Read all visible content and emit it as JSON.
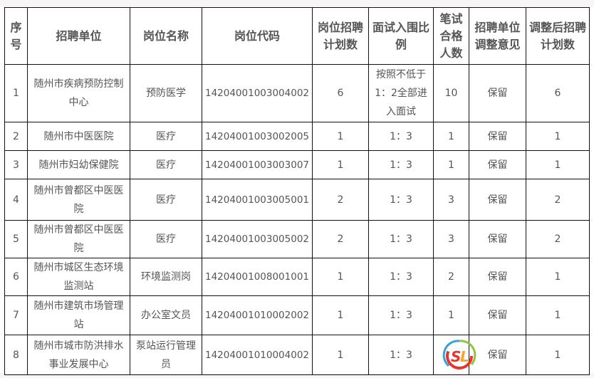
{
  "headers": [
    "序号",
    "招聘单位",
    "岗位名称",
    "岗位代码",
    "岗位招聘计划数",
    "面试入围比例",
    "笔试合格人数",
    "招聘单位调整意见",
    "调整后招聘计划数"
  ],
  "rows": [
    [
      "1",
      "随州市疾病预防控制中心",
      "预防医学",
      "14204001003004002",
      "6",
      "按照不低于1：2全部进入面试",
      "10",
      "保留",
      "6"
    ],
    [
      "2",
      "随州市中医医院",
      "医疗",
      "14204001003002005",
      "1",
      "1：3",
      "1",
      "保留",
      "1"
    ],
    [
      "3",
      "随州市妇幼保健院",
      "医疗",
      "14204001003003007",
      "1",
      "1：3",
      "1",
      "保留",
      "1"
    ],
    [
      "4",
      "随州市曾都区中医医院",
      "医疗",
      "14204001003005001",
      "2",
      "1：3",
      "3",
      "保留",
      "2"
    ],
    [
      "5",
      "随州市曾都区中医医院",
      "医疗",
      "14204001003005002",
      "2",
      "1：3",
      "3",
      "保留",
      "2"
    ],
    [
      "6",
      "随州市城区生态环境监测站",
      "环境监测岗",
      "14204001008001001",
      "1",
      "1：3",
      "2",
      "保留",
      "1"
    ],
    [
      "7",
      "随州市建筑市场管理站",
      "办公室文员",
      "14204001010002002",
      "1",
      "1：3",
      "1",
      "保留",
      "1"
    ],
    [
      "8",
      "随州市城市防洪排水事业发展中心",
      "泵站运行管理员",
      "14204001010004002",
      "1",
      "1：3",
      "",
      "保留",
      "1"
    ]
  ],
  "watermark": {
    "text": "SL",
    "colors": [
      "#e8352b",
      "#f5a623",
      "#3cb371",
      "#3aa0d8"
    ]
  }
}
